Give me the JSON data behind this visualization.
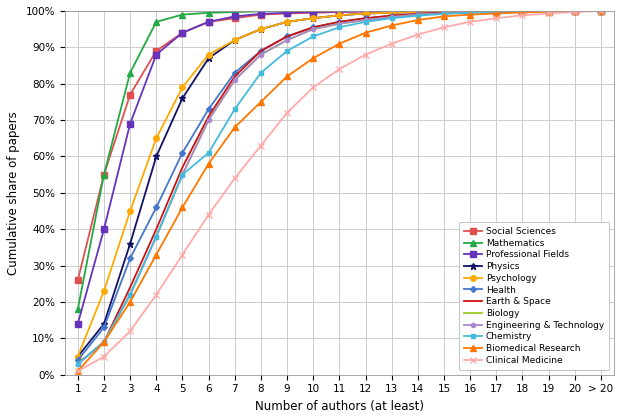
{
  "x_positions": [
    1,
    2,
    3,
    4,
    5,
    6,
    7,
    8,
    9,
    10,
    11,
    12,
    13,
    14,
    15,
    16,
    17,
    18,
    19,
    20,
    21
  ],
  "x_labels": [
    "1",
    "2",
    "3",
    "4",
    "5",
    "6",
    "7",
    "8",
    "9",
    "10",
    "11",
    "12",
    "13",
    "14",
    "15",
    "16",
    "17",
    "18",
    "19",
    "20",
    "> 20"
  ],
  "series": [
    {
      "name": "Social Sciences",
      "color": "#e05050",
      "marker": "s",
      "markersize": 4,
      "values": [
        26,
        55,
        77,
        89,
        94,
        97,
        98,
        99,
        99.3,
        99.5,
        99.7,
        99.8,
        99.9,
        100,
        100,
        100,
        100,
        100,
        100,
        100,
        100
      ]
    },
    {
      "name": "Mathematics",
      "color": "#22aa44",
      "marker": "^",
      "markersize": 4,
      "values": [
        18,
        55,
        83,
        97,
        99,
        99.5,
        99.7,
        99.9,
        100,
        100,
        100,
        100,
        100,
        100,
        100,
        100,
        100,
        100,
        100,
        100,
        100
      ]
    },
    {
      "name": "Professional Fields",
      "color": "#6633bb",
      "marker": "s",
      "markersize": 4,
      "values": [
        14,
        40,
        69,
        88,
        94,
        97,
        98.5,
        99.2,
        99.5,
        99.7,
        99.8,
        99.9,
        100,
        100,
        100,
        100,
        100,
        100,
        100,
        100,
        100
      ]
    },
    {
      "name": "Physics",
      "color": "#111166",
      "marker": "*",
      "markersize": 5,
      "values": [
        5,
        14,
        36,
        60,
        76,
        87,
        92,
        95,
        97,
        98,
        98.8,
        99.3,
        99.5,
        99.7,
        99.8,
        99.9,
        100,
        100,
        100,
        100,
        100
      ]
    },
    {
      "name": "Psychology",
      "color": "#ffaa00",
      "marker": "o",
      "markersize": 4,
      "values": [
        5,
        23,
        45,
        65,
        79,
        88,
        92,
        95,
        97,
        98,
        98.8,
        99.3,
        99.5,
        99.7,
        99.8,
        99.9,
        100,
        100,
        100,
        100,
        100
      ]
    },
    {
      "name": "Health",
      "color": "#4477cc",
      "marker": "D",
      "markersize": 3,
      "values": [
        4,
        13,
        32,
        46,
        61,
        73,
        83,
        89,
        93,
        95.5,
        97,
        98,
        98.7,
        99.2,
        99.5,
        99.7,
        99.8,
        99.9,
        100,
        100,
        100
      ]
    },
    {
      "name": "Earth & Space",
      "color": "#cc1111",
      "marker": "None",
      "markersize": 0,
      "values": [
        3,
        9,
        24,
        40,
        57,
        71,
        82,
        89,
        93,
        95.5,
        97,
        98,
        98.7,
        99.2,
        99.5,
        99.7,
        99.8,
        99.9,
        100,
        100,
        100
      ]
    },
    {
      "name": "Biology",
      "color": "#99cc22",
      "marker": "None",
      "markersize": 0,
      "values": [
        3,
        9,
        22,
        38,
        55,
        70,
        81,
        88,
        92,
        95,
        96.5,
        97.5,
        98.3,
        99,
        99.3,
        99.6,
        99.8,
        99.9,
        100,
        100,
        100
      ]
    },
    {
      "name": "Engineering & Technology",
      "color": "#aa88cc",
      "marker": "o",
      "markersize": 3,
      "values": [
        3,
        9,
        22,
        38,
        55,
        70,
        81,
        88,
        92,
        95,
        96.5,
        97.5,
        98.3,
        99,
        99.3,
        99.6,
        99.8,
        99.9,
        100,
        100,
        100
      ]
    },
    {
      "name": "Chemistry",
      "color": "#44bbdd",
      "marker": "s",
      "markersize": 3,
      "values": [
        3,
        9,
        22,
        38,
        55,
        61,
        73,
        83,
        89,
        93,
        95.5,
        97,
        98,
        98.7,
        99.2,
        99.5,
        99.7,
        99.8,
        99.9,
        100,
        100
      ]
    },
    {
      "name": "Biomedical Research",
      "color": "#ff7700",
      "marker": "^",
      "markersize": 4,
      "values": [
        1,
        9,
        20,
        33,
        46,
        58,
        68,
        75,
        82,
        87,
        91,
        94,
        96,
        97.5,
        98.5,
        99,
        99.3,
        99.6,
        99.8,
        100,
        100
      ]
    },
    {
      "name": "Clinical Medicine",
      "color": "#ffaaaa",
      "marker": "x",
      "markersize": 4,
      "values": [
        1,
        5,
        12,
        22,
        33,
        44,
        54,
        63,
        72,
        79,
        84,
        88,
        91,
        93.5,
        95.5,
        97,
        98,
        98.8,
        99.3,
        99.7,
        100
      ]
    }
  ],
  "xlabel": "Number of authors (at least)",
  "ylabel": "Cumulative share of papers",
  "ylim": [
    0,
    100
  ],
  "xlim": [
    0.5,
    21.5
  ],
  "background_color": "#ffffff",
  "grid_color": "#cccccc"
}
